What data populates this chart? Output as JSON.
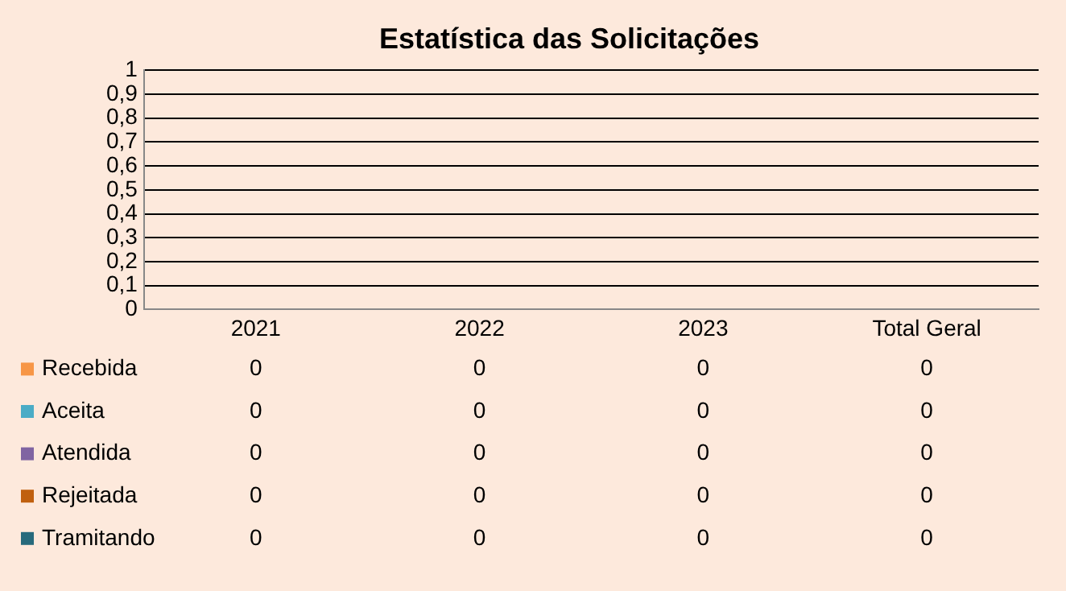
{
  "chart_data": {
    "type": "bar",
    "title": "Estatística das Solicitações",
    "categories": [
      "2021",
      "2022",
      "2023",
      "Total Geral"
    ],
    "series": [
      {
        "name": "Recebida",
        "color": "#f79646",
        "values": [
          0,
          0,
          0,
          0
        ]
      },
      {
        "name": "Aceita",
        "color": "#4bacc6",
        "values": [
          0,
          0,
          0,
          0
        ]
      },
      {
        "name": "Atendida",
        "color": "#8064a2",
        "values": [
          0,
          0,
          0,
          0
        ]
      },
      {
        "name": "Rejeitada",
        "color": "#c0600f",
        "values": [
          0,
          0,
          0,
          0
        ]
      },
      {
        "name": "Tramitando",
        "color": "#276a7c",
        "values": [
          0,
          0,
          0,
          0
        ]
      }
    ],
    "ylim": [
      0,
      1
    ],
    "yticks": [
      0,
      {
        "value": 0.1,
        "label": "0,1"
      },
      {
        "value": 0.2,
        "label": "0,2"
      },
      {
        "value": 0.3,
        "label": "0,3"
      },
      {
        "value": 0.4,
        "label": "0,4"
      },
      {
        "value": 0.5,
        "label": "0,5"
      },
      {
        "value": 0.6,
        "label": "0,6"
      },
      {
        "value": 0.7,
        "label": "0,7"
      },
      {
        "value": 0.8,
        "label": "0,8"
      },
      {
        "value": 0.9,
        "label": "0,9"
      },
      1
    ],
    "grid": "y",
    "legend": "bottom",
    "data_labels": true
  }
}
